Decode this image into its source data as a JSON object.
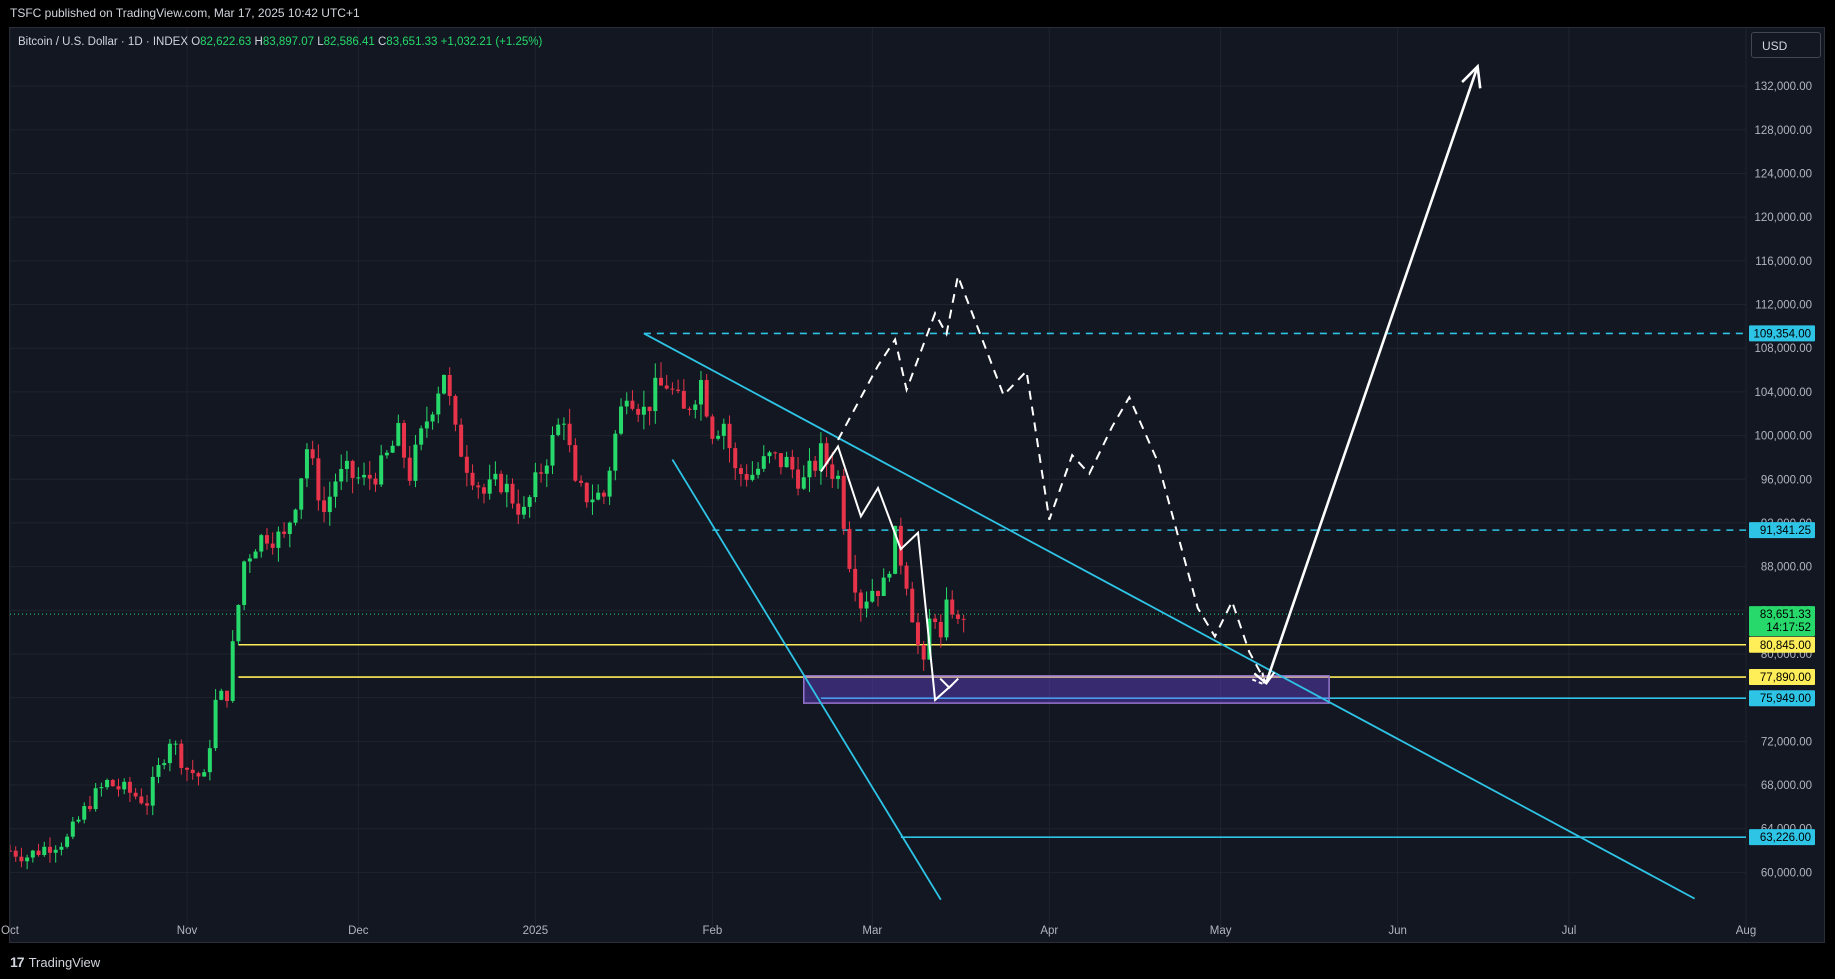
{
  "header": {
    "published": "TSFC published on TradingView.com, Mar 17, 2025 10:42 UTC+1"
  },
  "legend": {
    "symbol": "Bitcoin / U.S. Dollar · 1D · INDEX",
    "open_label": "O",
    "open": "82,622.63",
    "high_label": "H",
    "high": "83,897.07",
    "low_label": "L",
    "low": "82,586.41",
    "close_label": "C",
    "close": "83,651.33",
    "change": "+1,032.21 (+1.25%)"
  },
  "currency_button": "USD",
  "footer": {
    "brand": "TradingView"
  },
  "colors": {
    "up": "#26d96a",
    "down": "#e8344a",
    "cyan": "#2ec4e6",
    "yellow": "#ffee58",
    "zone": "#7c4dff"
  },
  "chart_data": {
    "type": "candlestick",
    "y_axis": {
      "ticks": [
        60000,
        64000,
        68000,
        72000,
        76000,
        80000,
        84000,
        88000,
        92000,
        96000,
        100000,
        104000,
        108000,
        112000,
        116000,
        120000,
        124000,
        128000,
        132000
      ],
      "tick_labels": [
        "60,000.00",
        "64,000.00",
        "68,000.00",
        "72,000.00",
        "76,000.00",
        "80,000.00",
        "84,000.00",
        "88,000.00",
        "92,000.00",
        "96,000.00",
        "100,000.00",
        "104,000.00",
        "108,000.00",
        "112,000.00",
        "116,000.00",
        "120,000.00",
        "124,000.00",
        "128,000.00",
        "132,000.00"
      ],
      "range": [
        56000,
        135000
      ]
    },
    "x_axis": {
      "range": [
        "2024-10-01",
        "2025-08-01"
      ],
      "ticks": [
        {
          "date": "2024-10-01",
          "label": "Oct"
        },
        {
          "date": "2024-11-01",
          "label": "Nov"
        },
        {
          "date": "2024-12-01",
          "label": "Dec"
        },
        {
          "date": "2025-01-01",
          "label": "2025"
        },
        {
          "date": "2025-02-01",
          "label": "Feb"
        },
        {
          "date": "2025-03-01",
          "label": "Mar"
        },
        {
          "date": "2025-04-01",
          "label": "Apr"
        },
        {
          "date": "2025-05-01",
          "label": "May"
        },
        {
          "date": "2025-06-01",
          "label": "Jun"
        },
        {
          "date": "2025-07-01",
          "label": "Jul"
        },
        {
          "date": "2025-08-01",
          "label": "Aug"
        }
      ]
    },
    "close_series": [
      [
        "2024-10-01",
        62000
      ],
      [
        "2024-10-04",
        61500
      ],
      [
        "2024-10-08",
        62500
      ],
      [
        "2024-10-11",
        63000
      ],
      [
        "2024-10-15",
        66500
      ],
      [
        "2024-10-18",
        68200
      ],
      [
        "2024-10-22",
        67300
      ],
      [
        "2024-10-25",
        66500
      ],
      [
        "2024-10-29",
        72300
      ],
      [
        "2024-11-01",
        69500
      ],
      [
        "2024-11-04",
        68500
      ],
      [
        "2024-11-06",
        75500
      ],
      [
        "2024-11-08",
        76500
      ],
      [
        "2024-11-11",
        88500
      ],
      [
        "2024-11-13",
        90200
      ],
      [
        "2024-11-15",
        91000
      ],
      [
        "2024-11-18",
        90500
      ],
      [
        "2024-11-20",
        94200
      ],
      [
        "2024-11-22",
        98900
      ],
      [
        "2024-11-25",
        93000
      ],
      [
        "2024-11-27",
        96000
      ],
      [
        "2024-11-29",
        96500
      ],
      [
        "2024-12-02",
        95800
      ],
      [
        "2024-12-05",
        97000
      ],
      [
        "2024-12-08",
        100000
      ],
      [
        "2024-12-10",
        96500
      ],
      [
        "2024-12-13",
        101500
      ],
      [
        "2024-12-16",
        106000
      ],
      [
        "2024-12-18",
        100000
      ],
      [
        "2024-12-20",
        97500
      ],
      [
        "2024-12-23",
        94700
      ],
      [
        "2024-12-26",
        95800
      ],
      [
        "2024-12-30",
        92800
      ],
      [
        "2025-01-02",
        96900
      ],
      [
        "2025-01-06",
        102000
      ],
      [
        "2025-01-08",
        95000
      ],
      [
        "2025-01-10",
        94500
      ],
      [
        "2025-01-13",
        94500
      ],
      [
        "2025-01-15",
        100000
      ],
      [
        "2025-01-17",
        104500
      ],
      [
        "2025-01-20",
        102200
      ],
      [
        "2025-01-22",
        104000
      ],
      [
        "2025-01-24",
        104800
      ],
      [
        "2025-01-27",
        102000
      ],
      [
        "2025-01-30",
        105000
      ],
      [
        "2025-02-01",
        100600
      ],
      [
        "2025-02-03",
        101300
      ],
      [
        "2025-02-05",
        96600
      ],
      [
        "2025-02-08",
        96500
      ],
      [
        "2025-02-11",
        97900
      ],
      [
        "2025-02-14",
        97500
      ],
      [
        "2025-02-17",
        95700
      ],
      [
        "2025-02-20",
        98300
      ],
      [
        "2025-02-23",
        96100
      ],
      [
        "2025-02-25",
        88700
      ],
      [
        "2025-02-27",
        84700
      ],
      [
        "2025-03-01",
        86000
      ],
      [
        "2025-03-03",
        86200
      ],
      [
        "2025-03-05",
        90600
      ],
      [
        "2025-03-07",
        86800
      ],
      [
        "2025-03-09",
        80700
      ],
      [
        "2025-03-10",
        78600
      ],
      [
        "2025-03-11",
        82900
      ],
      [
        "2025-03-12",
        83700
      ],
      [
        "2025-03-13",
        81000
      ],
      [
        "2025-03-14",
        84000
      ],
      [
        "2025-03-15",
        84300
      ],
      [
        "2025-03-16",
        82600
      ],
      [
        "2025-03-17",
        83651
      ]
    ],
    "drawings": {
      "horizontal_levels": [
        {
          "price": 109354,
          "label": "109,354.00",
          "color": "cyan",
          "style": "dashed",
          "from": "2025-01-20"
        },
        {
          "price": 91341.25,
          "label": "91,341.25",
          "color": "cyan",
          "style": "dashed",
          "from": "2025-02-01"
        },
        {
          "price": 80845,
          "label": "80,845.00",
          "color": "yellow",
          "style": "solid",
          "from": "2024-11-10"
        },
        {
          "price": 77890,
          "label": "77,890.00",
          "color": "yellow",
          "style": "solid",
          "from": "2024-11-10"
        },
        {
          "price": 75949,
          "label": "75,949.00",
          "color": "cyan",
          "style": "solid",
          "from": "2025-02-20"
        },
        {
          "price": 63226,
          "label": "63,226.00",
          "color": "cyan",
          "style": "solid",
          "from": "2025-03-06"
        }
      ],
      "current_price": {
        "price": 83651.33,
        "label": "83,651.33",
        "countdown": "14:17:52"
      },
      "zone": {
        "from": "2025-02-17",
        "to": "2025-05-20",
        "price_top": 78000,
        "price_bottom": 75500
      },
      "trendlines": [
        {
          "from": [
            "2025-01-20",
            109354
          ],
          "to": [
            "2025-07-23",
            57600
          ]
        },
        {
          "from": [
            "2025-01-25",
            97800
          ],
          "to": [
            "2025-03-13",
            57500
          ]
        }
      ],
      "solid_path": [
        [
          "2025-02-20",
          96700
        ],
        [
          "2025-02-23",
          99000
        ],
        [
          "2025-02-27",
          92600
        ],
        [
          "2025-03-02",
          95200
        ],
        [
          "2025-03-06",
          89600
        ],
        [
          "2025-03-09",
          91100
        ],
        [
          "2025-03-12",
          75800
        ],
        [
          "2025-03-15",
          77200
        ]
      ],
      "dashed_path": [
        [
          "2025-02-23",
          99600
        ],
        [
          "2025-03-02",
          106400
        ],
        [
          "2025-03-05",
          108800
        ],
        [
          "2025-03-07",
          104200
        ],
        [
          "2025-03-12",
          111200
        ],
        [
          "2025-03-14",
          109300
        ],
        [
          "2025-03-16",
          114600
        ],
        [
          "2025-03-21",
          107800
        ],
        [
          "2025-03-24",
          103700
        ],
        [
          "2025-03-28",
          105900
        ],
        [
          "2025-04-01",
          92300
        ],
        [
          "2025-04-05",
          98200
        ],
        [
          "2025-04-08",
          96500
        ],
        [
          "2025-04-12",
          100800
        ],
        [
          "2025-04-15",
          103500
        ],
        [
          "2025-04-20",
          97600
        ],
        [
          "2025-04-27",
          84200
        ],
        [
          "2025-04-30",
          81600
        ],
        [
          "2025-05-03",
          84800
        ],
        [
          "2025-05-06",
          80200
        ],
        [
          "2025-05-09",
          77300
        ]
      ],
      "arrow_up": {
        "from": [
          "2025-05-09",
          77400
        ],
        "to": [
          "2025-06-15",
          133800
        ]
      }
    }
  }
}
